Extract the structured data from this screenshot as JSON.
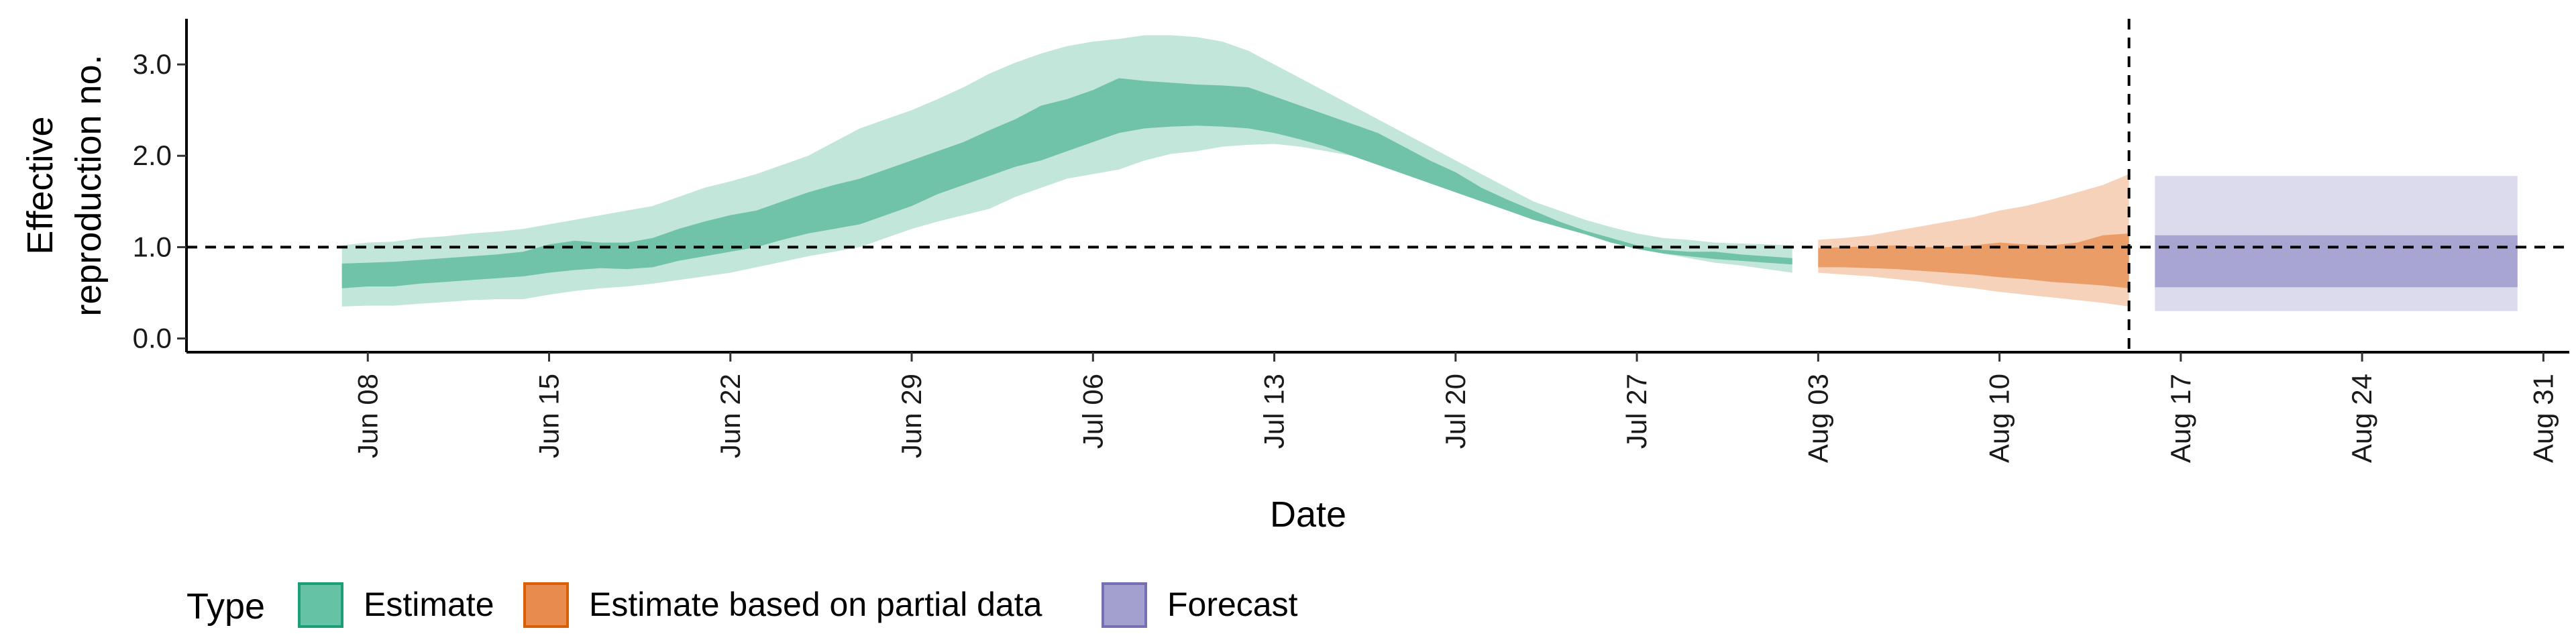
{
  "chart_data": {
    "type": "area",
    "xlabel": "Date",
    "ylabel_lines": [
      "Effective",
      "reproduction no."
    ],
    "ylim": [
      -0.15,
      3.5
    ],
    "y_ticks": [
      0.0,
      1.0,
      2.0,
      3.0
    ],
    "y_tick_labels": [
      "0.0",
      "1.0",
      "2.0",
      "3.0"
    ],
    "xlim": [
      "2020-06-01",
      "2020-09-01"
    ],
    "x_ticks": [
      "2020-06-08",
      "2020-06-15",
      "2020-06-22",
      "2020-06-29",
      "2020-07-06",
      "2020-07-13",
      "2020-07-20",
      "2020-07-27",
      "2020-08-03",
      "2020-08-10",
      "2020-08-17",
      "2020-08-24",
      "2020-08-31"
    ],
    "x_tick_labels": [
      "Jun 08",
      "Jun 15",
      "Jun 22",
      "Jun 29",
      "Jul 06",
      "Jul 13",
      "Jul 20",
      "Jul 27",
      "Aug 03",
      "Aug 10",
      "Aug 17",
      "Aug 24",
      "Aug 31"
    ],
    "reference_line_y": 1.0,
    "reference_line_x": "2020-08-15",
    "legend": {
      "title": "Type",
      "placement": "bottom",
      "entries": [
        {
          "label": "Estimate",
          "fill": "#66C2A5",
          "stroke": "#1B9E77"
        },
        {
          "label": "Estimate based on partial data",
          "fill": "#E78C4E",
          "stroke": "#D95F02"
        },
        {
          "label": "Forecast",
          "fill": "#A39FCF",
          "stroke": "#7570B3"
        }
      ]
    },
    "series": [
      {
        "type_ref": 0,
        "outer_color": "#C2E6DA",
        "inner_color": "#70C3A9",
        "dates": [
          "2020-06-07",
          "2020-06-08",
          "2020-06-09",
          "2020-06-10",
          "2020-06-11",
          "2020-06-12",
          "2020-06-13",
          "2020-06-14",
          "2020-06-15",
          "2020-06-16",
          "2020-06-17",
          "2020-06-18",
          "2020-06-19",
          "2020-06-20",
          "2020-06-21",
          "2020-06-22",
          "2020-06-23",
          "2020-06-24",
          "2020-06-25",
          "2020-06-26",
          "2020-06-27",
          "2020-06-28",
          "2020-06-29",
          "2020-06-30",
          "2020-07-01",
          "2020-07-02",
          "2020-07-03",
          "2020-07-04",
          "2020-07-05",
          "2020-07-06",
          "2020-07-07",
          "2020-07-08",
          "2020-07-09",
          "2020-07-10",
          "2020-07-11",
          "2020-07-12",
          "2020-07-13",
          "2020-07-14",
          "2020-07-15",
          "2020-07-16",
          "2020-07-17",
          "2020-07-18",
          "2020-07-19",
          "2020-07-20",
          "2020-07-21",
          "2020-07-22",
          "2020-07-23",
          "2020-07-24",
          "2020-07-25",
          "2020-07-26",
          "2020-07-27",
          "2020-07-28",
          "2020-07-29",
          "2020-07-30",
          "2020-07-31",
          "2020-08-01",
          "2020-08-02"
        ],
        "outer_lower": [
          0.35,
          0.36,
          0.36,
          0.38,
          0.4,
          0.42,
          0.43,
          0.43,
          0.48,
          0.52,
          0.55,
          0.57,
          0.6,
          0.64,
          0.68,
          0.72,
          0.78,
          0.84,
          0.9,
          0.95,
          1.0,
          1.1,
          1.2,
          1.28,
          1.35,
          1.42,
          1.55,
          1.65,
          1.75,
          1.8,
          1.85,
          1.95,
          2.02,
          2.05,
          2.1,
          2.12,
          2.13,
          2.1,
          2.05,
          2.0,
          1.92,
          1.85,
          1.75,
          1.65,
          1.55,
          1.45,
          1.35,
          1.25,
          1.17,
          1.08,
          1.0,
          0.93,
          0.88,
          0.83,
          0.8,
          0.76,
          0.72
        ],
        "inner_lower": [
          0.55,
          0.57,
          0.57,
          0.6,
          0.62,
          0.64,
          0.66,
          0.68,
          0.72,
          0.75,
          0.77,
          0.76,
          0.78,
          0.85,
          0.9,
          0.95,
          1.0,
          1.08,
          1.15,
          1.2,
          1.25,
          1.35,
          1.45,
          1.58,
          1.68,
          1.78,
          1.88,
          1.95,
          2.05,
          2.15,
          2.25,
          2.3,
          2.32,
          2.33,
          2.32,
          2.3,
          2.25,
          2.18,
          2.1,
          2.0,
          1.9,
          1.8,
          1.7,
          1.6,
          1.5,
          1.4,
          1.3,
          1.22,
          1.14,
          1.05,
          0.98,
          0.93,
          0.9,
          0.87,
          0.85,
          0.83,
          0.81
        ],
        "inner_upper": [
          0.82,
          0.83,
          0.84,
          0.86,
          0.88,
          0.9,
          0.92,
          0.95,
          1.03,
          1.07,
          1.05,
          1.05,
          1.1,
          1.2,
          1.28,
          1.35,
          1.4,
          1.5,
          1.6,
          1.68,
          1.75,
          1.85,
          1.95,
          2.05,
          2.15,
          2.28,
          2.4,
          2.55,
          2.62,
          2.72,
          2.85,
          2.82,
          2.8,
          2.78,
          2.77,
          2.75,
          2.65,
          2.55,
          2.45,
          2.35,
          2.25,
          2.1,
          1.95,
          1.82,
          1.65,
          1.52,
          1.4,
          1.28,
          1.18,
          1.1,
          1.02,
          0.97,
          0.95,
          0.95,
          0.92,
          0.9,
          0.88
        ],
        "outer_upper": [
          1.02,
          1.05,
          1.06,
          1.1,
          1.12,
          1.15,
          1.17,
          1.2,
          1.25,
          1.3,
          1.35,
          1.4,
          1.45,
          1.55,
          1.65,
          1.72,
          1.8,
          1.9,
          2.0,
          2.15,
          2.3,
          2.4,
          2.5,
          2.62,
          2.75,
          2.9,
          3.02,
          3.12,
          3.2,
          3.25,
          3.28,
          3.32,
          3.32,
          3.3,
          3.25,
          3.15,
          3.0,
          2.85,
          2.7,
          2.55,
          2.4,
          2.25,
          2.1,
          1.95,
          1.8,
          1.65,
          1.5,
          1.4,
          1.3,
          1.22,
          1.15,
          1.1,
          1.08,
          1.05,
          1.04,
          1.03,
          1.02
        ]
      },
      {
        "type_ref": 1,
        "outer_color": "#F7D2BA",
        "inner_color": "#EB9D68",
        "dates": [
          "2020-08-03",
          "2020-08-04",
          "2020-08-05",
          "2020-08-06",
          "2020-08-07",
          "2020-08-08",
          "2020-08-09",
          "2020-08-10",
          "2020-08-11",
          "2020-08-12",
          "2020-08-13",
          "2020-08-14",
          "2020-08-15"
        ],
        "outer_lower": [
          0.72,
          0.7,
          0.68,
          0.65,
          0.62,
          0.58,
          0.55,
          0.51,
          0.48,
          0.45,
          0.42,
          0.39,
          0.35
        ],
        "inner_lower": [
          0.78,
          0.78,
          0.77,
          0.76,
          0.74,
          0.72,
          0.7,
          0.67,
          0.65,
          0.62,
          0.6,
          0.58,
          0.55
        ],
        "inner_upper": [
          0.99,
          1.0,
          1.01,
          1.02,
          1.0,
          1.0,
          1.02,
          1.05,
          1.03,
          1.02,
          1.05,
          1.13,
          1.15
        ],
        "outer_upper": [
          1.08,
          1.1,
          1.13,
          1.18,
          1.23,
          1.28,
          1.33,
          1.4,
          1.45,
          1.52,
          1.6,
          1.68,
          1.8
        ]
      },
      {
        "type_ref": 2,
        "outer_color": "#DCDBEE",
        "inner_color": "#A8A5D3",
        "dates": [
          "2020-08-16",
          "2020-08-30"
        ],
        "outer_lower": [
          0.3,
          0.3
        ],
        "inner_lower": [
          0.56,
          0.56
        ],
        "inner_upper": [
          1.13,
          1.13
        ],
        "outer_upper": [
          1.78,
          1.78
        ]
      }
    ]
  }
}
